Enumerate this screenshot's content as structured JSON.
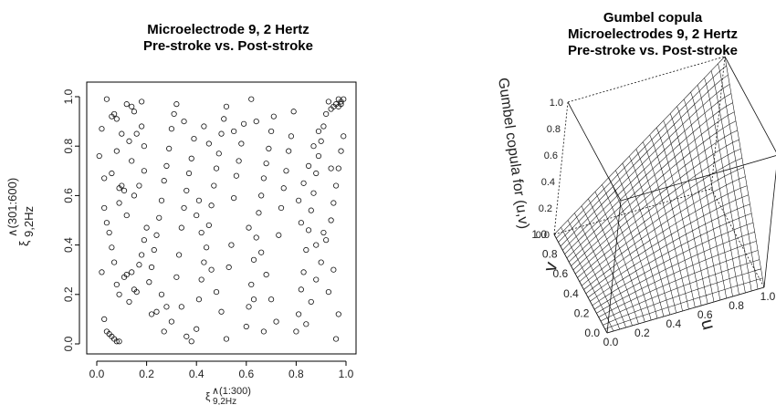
{
  "chart_data": [
    {
      "type": "scatter",
      "title": "Microelectrode 9, 2 Hertz",
      "subtitle": "Pre-stroke vs. Post-stroke",
      "xlabel_main": "ξ",
      "xlabel_sup": "∧(1:300)",
      "xlabel_sub": "9,2Hz",
      "ylabel_main": "ξ",
      "ylabel_sup": "∧(301:600)",
      "ylabel_sub": "9,2Hz",
      "xlim": [
        0.0,
        1.0
      ],
      "ylim": [
        0.0,
        1.0
      ],
      "xticks": [
        "0.0",
        "0.2",
        "0.4",
        "0.6",
        "0.8",
        "1.0"
      ],
      "yticks": [
        "0.0",
        "0.2",
        "0.4",
        "0.6",
        "0.8",
        "1.0"
      ],
      "grid": false,
      "marker": "open-circle",
      "points": [
        [
          0.97,
          0.99
        ],
        [
          0.98,
          0.98
        ],
        [
          0.96,
          0.97
        ],
        [
          0.95,
          0.96
        ],
        [
          0.97,
          0.96
        ],
        [
          0.98,
          0.97
        ],
        [
          0.94,
          0.95
        ],
        [
          0.99,
          0.99
        ],
        [
          0.04,
          0.05
        ],
        [
          0.05,
          0.04
        ],
        [
          0.06,
          0.03
        ],
        [
          0.07,
          0.02
        ],
        [
          0.08,
          0.01
        ],
        [
          0.09,
          0.01
        ],
        [
          0.03,
          0.1
        ],
        [
          0.01,
          0.76
        ],
        [
          0.02,
          0.87
        ],
        [
          0.04,
          0.99
        ],
        [
          0.06,
          0.92
        ],
        [
          0.07,
          0.93
        ],
        [
          0.08,
          0.91
        ],
        [
          0.09,
          0.63
        ],
        [
          0.1,
          0.64
        ],
        [
          0.11,
          0.62
        ],
        [
          0.12,
          0.97
        ],
        [
          0.14,
          0.96
        ],
        [
          0.15,
          0.94
        ],
        [
          0.16,
          0.85
        ],
        [
          0.18,
          0.98
        ],
        [
          0.19,
          0.8
        ],
        [
          0.02,
          0.29
        ],
        [
          0.03,
          0.55
        ],
        [
          0.04,
          0.49
        ],
        [
          0.05,
          0.45
        ],
        [
          0.06,
          0.39
        ],
        [
          0.07,
          0.33
        ],
        [
          0.08,
          0.24
        ],
        [
          0.09,
          0.2
        ],
        [
          0.11,
          0.27
        ],
        [
          0.12,
          0.28
        ],
        [
          0.13,
          0.17
        ],
        [
          0.14,
          0.29
        ],
        [
          0.15,
          0.22
        ],
        [
          0.16,
          0.21
        ],
        [
          0.17,
          0.32
        ],
        [
          0.18,
          0.36
        ],
        [
          0.19,
          0.42
        ],
        [
          0.2,
          0.47
        ],
        [
          0.12,
          0.52
        ],
        [
          0.09,
          0.57
        ],
        [
          0.15,
          0.6
        ],
        [
          0.17,
          0.64
        ],
        [
          0.19,
          0.7
        ],
        [
          0.14,
          0.74
        ],
        [
          0.08,
          0.78
        ],
        [
          0.1,
          0.85
        ],
        [
          0.13,
          0.82
        ],
        [
          0.18,
          0.88
        ],
        [
          0.06,
          0.69
        ],
        [
          0.03,
          0.67
        ],
        [
          0.21,
          0.25
        ],
        [
          0.22,
          0.31
        ],
        [
          0.23,
          0.38
        ],
        [
          0.24,
          0.44
        ],
        [
          0.25,
          0.51
        ],
        [
          0.26,
          0.58
        ],
        [
          0.27,
          0.66
        ],
        [
          0.28,
          0.72
        ],
        [
          0.29,
          0.79
        ],
        [
          0.3,
          0.87
        ],
        [
          0.31,
          0.93
        ],
        [
          0.32,
          0.97
        ],
        [
          0.22,
          0.12
        ],
        [
          0.24,
          0.13
        ],
        [
          0.26,
          0.2
        ],
        [
          0.28,
          0.15
        ],
        [
          0.3,
          0.09
        ],
        [
          0.32,
          0.27
        ],
        [
          0.33,
          0.36
        ],
        [
          0.34,
          0.47
        ],
        [
          0.35,
          0.55
        ],
        [
          0.36,
          0.62
        ],
        [
          0.37,
          0.69
        ],
        [
          0.38,
          0.75
        ],
        [
          0.39,
          0.83
        ],
        [
          0.35,
          0.9
        ],
        [
          0.27,
          0.05
        ],
        [
          0.34,
          0.15
        ],
        [
          0.36,
          0.03
        ],
        [
          0.38,
          0.01
        ],
        [
          0.4,
          0.06
        ],
        [
          0.41,
          0.18
        ],
        [
          0.42,
          0.26
        ],
        [
          0.43,
          0.33
        ],
        [
          0.44,
          0.39
        ],
        [
          0.45,
          0.48
        ],
        [
          0.46,
          0.56
        ],
        [
          0.47,
          0.64
        ],
        [
          0.48,
          0.71
        ],
        [
          0.49,
          0.77
        ],
        [
          0.5,
          0.85
        ],
        [
          0.51,
          0.91
        ],
        [
          0.43,
          0.88
        ],
        [
          0.45,
          0.81
        ],
        [
          0.41,
          0.58
        ],
        [
          0.4,
          0.52
        ],
        [
          0.42,
          0.45
        ],
        [
          0.46,
          0.3
        ],
        [
          0.48,
          0.21
        ],
        [
          0.5,
          0.13
        ],
        [
          0.52,
          0.02
        ],
        [
          0.53,
          0.31
        ],
        [
          0.54,
          0.4
        ],
        [
          0.55,
          0.59
        ],
        [
          0.56,
          0.68
        ],
        [
          0.57,
          0.74
        ],
        [
          0.58,
          0.81
        ],
        [
          0.59,
          0.89
        ],
        [
          0.52,
          0.96
        ],
        [
          0.55,
          0.86
        ],
        [
          0.6,
          0.07
        ],
        [
          0.61,
          0.15
        ],
        [
          0.62,
          0.24
        ],
        [
          0.63,
          0.34
        ],
        [
          0.64,
          0.43
        ],
        [
          0.65,
          0.53
        ],
        [
          0.66,
          0.6
        ],
        [
          0.67,
          0.67
        ],
        [
          0.68,
          0.73
        ],
        [
          0.69,
          0.79
        ],
        [
          0.7,
          0.86
        ],
        [
          0.71,
          0.92
        ],
        [
          0.62,
          0.99
        ],
        [
          0.64,
          0.9
        ],
        [
          0.66,
          0.37
        ],
        [
          0.68,
          0.28
        ],
        [
          0.7,
          0.18
        ],
        [
          0.72,
          0.09
        ],
        [
          0.73,
          0.44
        ],
        [
          0.74,
          0.55
        ],
        [
          0.75,
          0.63
        ],
        [
          0.76,
          0.7
        ],
        [
          0.77,
          0.78
        ],
        [
          0.78,
          0.84
        ],
        [
          0.79,
          0.94
        ],
        [
          0.61,
          0.47
        ],
        [
          0.63,
          0.18
        ],
        [
          0.67,
          0.05
        ],
        [
          0.8,
          0.05
        ],
        [
          0.81,
          0.12
        ],
        [
          0.82,
          0.22
        ],
        [
          0.83,
          0.29
        ],
        [
          0.84,
          0.38
        ],
        [
          0.85,
          0.46
        ],
        [
          0.86,
          0.54
        ],
        [
          0.87,
          0.61
        ],
        [
          0.88,
          0.69
        ],
        [
          0.89,
          0.76
        ],
        [
          0.9,
          0.82
        ],
        [
          0.91,
          0.88
        ],
        [
          0.92,
          0.93
        ],
        [
          0.93,
          0.98
        ],
        [
          0.81,
          0.58
        ],
        [
          0.83,
          0.65
        ],
        [
          0.85,
          0.72
        ],
        [
          0.87,
          0.8
        ],
        [
          0.89,
          0.86
        ],
        [
          0.84,
          0.08
        ],
        [
          0.86,
          0.17
        ],
        [
          0.88,
          0.26
        ],
        [
          0.9,
          0.33
        ],
        [
          0.92,
          0.42
        ],
        [
          0.94,
          0.5
        ],
        [
          0.95,
          0.57
        ],
        [
          0.96,
          0.64
        ],
        [
          0.97,
          0.71
        ],
        [
          0.98,
          0.78
        ],
        [
          0.99,
          0.84
        ],
        [
          0.96,
          0.02
        ],
        [
          0.97,
          0.12
        ],
        [
          0.93,
          0.21
        ],
        [
          0.95,
          0.3
        ],
        [
          0.91,
          0.45
        ],
        [
          0.82,
          0.49
        ],
        [
          0.88,
          0.4
        ],
        [
          0.94,
          0.71
        ]
      ]
    },
    {
      "type": "surface3d",
      "title_line1": "Gumbel copula",
      "title_line2": "Microelectrodes 9, 2 Hertz",
      "title_line3": "Pre-stroke vs. Post-stroke",
      "zlabel": "Gumbel copula for (u,v)",
      "xlabel": "u",
      "ylabel": "v",
      "u_ticks": [
        "0.0",
        "0.2",
        "0.4",
        "0.6",
        "0.8",
        "1.0"
      ],
      "v_ticks": [
        "0.0",
        "0.2",
        "0.4",
        "0.6",
        "0.8",
        "1.0"
      ],
      "z_ticks": [
        "0.0",
        "0.2",
        "0.4",
        "0.6",
        "0.8",
        "1.0"
      ],
      "z_range": [
        0.0,
        1.0
      ],
      "grid_lines": 25,
      "box": true
    }
  ]
}
